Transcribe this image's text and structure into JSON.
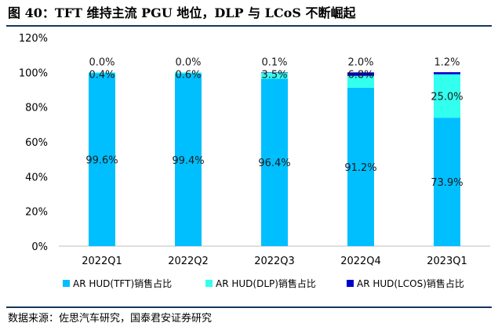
{
  "figure": {
    "title": "图 40：TFT 维持主流 PGU 地位，DLP 与 LCoS 不断崛起",
    "source": "数据来源：佐思汽车研究，国泰君安证券研究"
  },
  "chart_data": {
    "type": "bar",
    "stacked": true,
    "categories": [
      "2022Q1",
      "2022Q2",
      "2022Q3",
      "2022Q4",
      "2023Q1"
    ],
    "series": [
      {
        "name": "AR HUD(TFT)销售占比",
        "values": [
          99.6,
          99.4,
          96.4,
          91.2,
          73.9
        ],
        "labels": [
          "99.6%",
          "99.4%",
          "96.4%",
          "91.2%",
          "73.9%"
        ],
        "color": "#00bfff"
      },
      {
        "name": "AR HUD(DLP)销售占比",
        "values": [
          0.4,
          0.6,
          3.5,
          6.8,
          25.0
        ],
        "labels": [
          "0.4%",
          "0.6%",
          "3.5%",
          "6.8%",
          "25.0%"
        ],
        "color": "#33ffee"
      },
      {
        "name": "AR HUD(LCOS)销售占比",
        "values": [
          0.0,
          0.0,
          0.1,
          2.0,
          1.2
        ],
        "labels": [
          "0.0%",
          "0.0%",
          "0.1%",
          "2.0%",
          "1.2%"
        ],
        "color": "#0000cc"
      }
    ],
    "y_ticks": [
      "0%",
      "20%",
      "40%",
      "60%",
      "80%",
      "100%",
      "120%"
    ],
    "ylim": [
      0,
      120
    ],
    "ylabel": "",
    "xlabel": "",
    "grid": false,
    "legend": "bottom"
  }
}
